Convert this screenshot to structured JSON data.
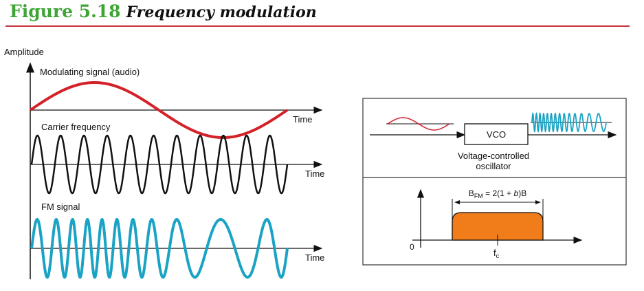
{
  "figure": {
    "number": "Figure 5.18",
    "title": "Frequency modulation",
    "accent_color": "#3fa535",
    "rule_color": "#c8323a"
  },
  "waveforms": {
    "y_axis_label": "Amplitude",
    "modulating_label": "Modulating signal (audio)",
    "carrier_label": "Carrier frequency",
    "fm_label": "FM signal",
    "time_label": "Time",
    "modulating_color": "#d42128",
    "carrier_color": "#111111",
    "fm_color": "#1aa3c4",
    "carrier_cycles": 11
  },
  "block": {
    "vco_label": "VCO",
    "vco_caption_line1": "Voltage-controlled",
    "vco_caption_line2": "oscillator"
  },
  "bandwidth": {
    "equation": "B",
    "equation_sub": "FM",
    "equation_rest": " = 2(1 + ",
    "equation_var": "b",
    "equation_end": ")B",
    "origin_label": "0",
    "center_label": "f",
    "center_sub": "c",
    "band_color": "#f07d1a"
  }
}
